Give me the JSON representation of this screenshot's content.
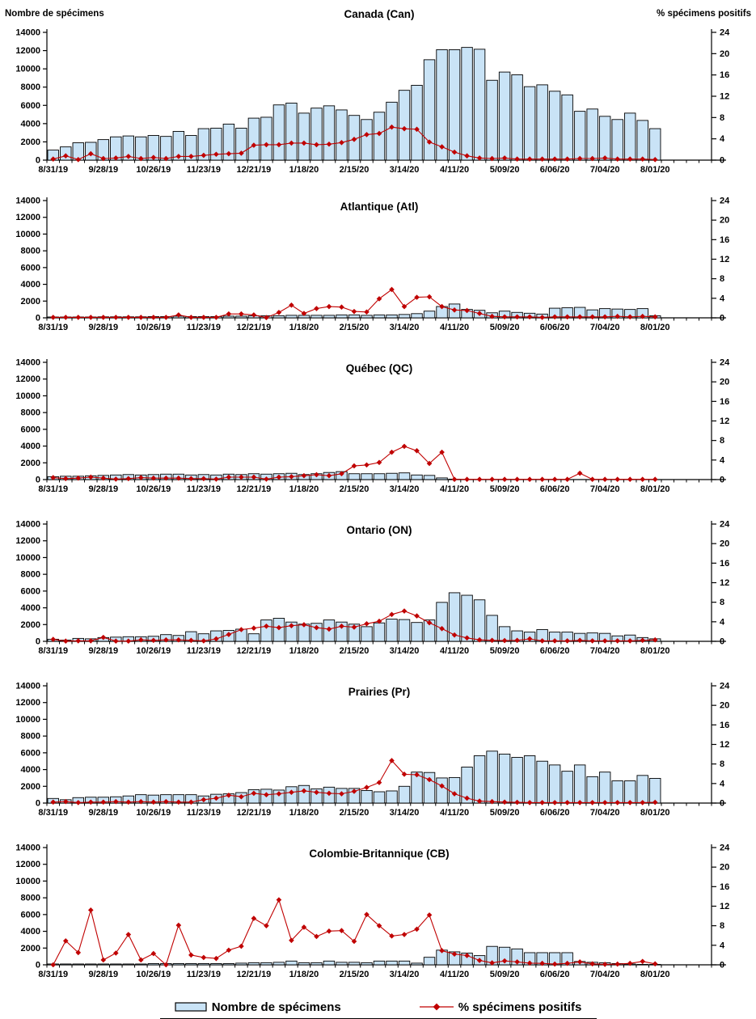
{
  "axes": {
    "left_title": "Nombre de spécimens",
    "right_title": "% spécimens positifs",
    "left_ticks": [
      0,
      2000,
      4000,
      6000,
      8000,
      10000,
      12000,
      14000
    ],
    "right_ticks": [
      0,
      4,
      8,
      12,
      16,
      20,
      24
    ],
    "left_max": 14000,
    "right_max": 24,
    "x_tick_labels": [
      "8/31/19",
      "9/28/19",
      "10/26/19",
      "11/23/19",
      "12/21/19",
      "1/18/20",
      "2/15/20",
      "3/14/20",
      "4/11/20",
      "5/09/20",
      "6/06/20",
      "7/04/20",
      "8/01/20"
    ],
    "weeks_total": 53,
    "weeks_data": 49,
    "label_every": 4
  },
  "legend": {
    "bar_label": "Nombre de spécimens",
    "line_label": "% spécimens positifs"
  },
  "colors": {
    "bar_fill": "#C9E3F6",
    "bar_stroke": "#000000",
    "line": "#C00000",
    "text": "#000000"
  },
  "chart_data": [
    {
      "type": "bar",
      "region_id": "canada",
      "title": "Canada (Can)",
      "bar_series": "Nombre de spécimens",
      "line_series": "% spécimens positifs",
      "specimens": [
        1100,
        1450,
        1900,
        1950,
        2250,
        2550,
        2650,
        2550,
        2700,
        2600,
        3150,
        2700,
        3450,
        3500,
        3950,
        3500,
        4600,
        4700,
        6050,
        6250,
        5150,
        5700,
        5950,
        5500,
        4900,
        4450,
        5250,
        6350,
        7650,
        8200,
        11000,
        12100,
        12100,
        12350,
        12150,
        8750,
        9650,
        9350,
        8050,
        8250,
        7550,
        7150,
        5350,
        5600,
        4800,
        4450,
        5150,
        4350,
        3450
      ],
      "pct_positifs": [
        0.2,
        0.8,
        0.1,
        1.2,
        0.3,
        0.4,
        0.7,
        0.3,
        0.5,
        0.3,
        0.7,
        0.7,
        0.9,
        1.1,
        1.2,
        1.3,
        2.8,
        2.9,
        2.9,
        3.2,
        3.2,
        2.9,
        3.0,
        3.3,
        3.9,
        4.8,
        5.0,
        6.2,
        5.9,
        5.8,
        3.4,
        2.5,
        1.5,
        0.8,
        0.4,
        0.3,
        0.4,
        0.2,
        0.2,
        0.2,
        0.2,
        0.2,
        0.3,
        0.3,
        0.4,
        0.2,
        0.2,
        0.2,
        0.1
      ]
    },
    {
      "type": "bar",
      "region_id": "atlantique",
      "title": "Atlantique (Atl)",
      "bar_series": "Nombre de spécimens",
      "line_series": "% spécimens positifs",
      "specimens": [
        100,
        100,
        100,
        100,
        120,
        120,
        120,
        120,
        150,
        150,
        200,
        150,
        150,
        150,
        200,
        200,
        250,
        250,
        250,
        300,
        300,
        300,
        300,
        350,
        350,
        300,
        350,
        350,
        400,
        500,
        800,
        1350,
        1650,
        1000,
        900,
        600,
        800,
        650,
        550,
        450,
        1150,
        1200,
        1250,
        950,
        1100,
        1050,
        1000,
        1100,
        250
      ],
      "pct_positifs": [
        0.1,
        0.1,
        0.1,
        0.1,
        0.1,
        0.1,
        0.1,
        0.1,
        0.1,
        0.1,
        0.6,
        0.1,
        0.1,
        0.1,
        0.8,
        0.8,
        0.6,
        0.05,
        1.1,
        2.6,
        0.9,
        1.9,
        2.3,
        2.2,
        1.3,
        1.2,
        3.9,
        5.8,
        2.3,
        4.2,
        4.3,
        2.3,
        1.6,
        1.5,
        0.9,
        0.3,
        0.2,
        0.2,
        0.2,
        0.1,
        0.2,
        0.2,
        0.2,
        0.2,
        0.2,
        0.3,
        0.2,
        0.3,
        0.2
      ]
    },
    {
      "type": "bar",
      "region_id": "quebec",
      "title": "Québec (QC)",
      "bar_series": "Nombre de spécimens",
      "line_series": "% spécimens positifs",
      "specimens": [
        350,
        400,
        400,
        450,
        500,
        550,
        600,
        550,
        600,
        650,
        650,
        550,
        600,
        550,
        650,
        600,
        700,
        650,
        700,
        750,
        600,
        700,
        850,
        950,
        700,
        700,
        700,
        750,
        800,
        550,
        500,
        200,
        50,
        0,
        0,
        0,
        0,
        0,
        0,
        0,
        0,
        0,
        0,
        0,
        0,
        0,
        0,
        0,
        0
      ],
      "pct_positifs": [
        0.4,
        0.2,
        0.3,
        0.5,
        0.3,
        0.1,
        0.2,
        0.4,
        0.3,
        0.3,
        0.3,
        0.2,
        0.2,
        0.1,
        0.5,
        0.5,
        0.5,
        0.1,
        0.5,
        0.6,
        0.8,
        1.0,
        0.8,
        1.2,
        2.8,
        3.0,
        3.5,
        5.6,
        6.8,
        5.9,
        3.3,
        5.6,
        0.05,
        0.05,
        0.05,
        0.05,
        0.05,
        0.05,
        0.05,
        0.05,
        0.05,
        0.05,
        1.3,
        0.05,
        0.05,
        0.05,
        0.05,
        0.05,
        0.05
      ]
    },
    {
      "type": "bar",
      "region_id": "ontario",
      "title": "Ontario (ON)",
      "bar_series": "Nombre de spécimens",
      "line_series": "% spécimens positifs",
      "specimens": [
        250,
        150,
        350,
        300,
        450,
        500,
        550,
        550,
        600,
        800,
        700,
        1150,
        900,
        1250,
        1300,
        1450,
        900,
        2550,
        2750,
        2300,
        2050,
        2150,
        2550,
        2300,
        2050,
        1750,
        2200,
        2650,
        2600,
        2250,
        2550,
        4650,
        5800,
        5500,
        4950,
        3100,
        1750,
        1250,
        1100,
        1400,
        1100,
        1100,
        950,
        1000,
        950,
        650,
        750,
        450,
        300
      ],
      "pct_positifs": [
        0.4,
        0.05,
        0.1,
        0.1,
        0.8,
        0.05,
        0.05,
        0.3,
        0.2,
        0.3,
        0.3,
        0.2,
        0.1,
        0.5,
        1.4,
        2.4,
        2.7,
        3.1,
        2.8,
        3.2,
        3.4,
        2.8,
        2.5,
        3.1,
        2.9,
        3.6,
        4.1,
        5.5,
        6.2,
        5.2,
        3.8,
        2.6,
        1.3,
        0.7,
        0.3,
        0.2,
        0.15,
        0.2,
        0.5,
        0.1,
        0.1,
        0.1,
        0.2,
        0.1,
        0.1,
        0.1,
        0.1,
        0.2,
        0.3
      ]
    },
    {
      "type": "bar",
      "region_id": "prairies",
      "title": "Prairies (Pr)",
      "bar_series": "Nombre de spécimens",
      "line_series": "% spécimens positifs",
      "specimens": [
        550,
        400,
        650,
        700,
        700,
        750,
        850,
        1000,
        950,
        1000,
        1000,
        1000,
        850,
        1050,
        1100,
        1250,
        1600,
        1650,
        1550,
        1950,
        2100,
        1700,
        1900,
        1750,
        1750,
        1500,
        1350,
        1450,
        2000,
        3700,
        3650,
        3000,
        3050,
        4300,
        5650,
        6200,
        5850,
        5450,
        5650,
        5000,
        4550,
        3800,
        4550,
        3150,
        3700,
        2650,
        2650,
        3300,
        2950
      ],
      "pct_positifs": [
        0.2,
        0.3,
        0.1,
        0.2,
        0.2,
        0.3,
        0.2,
        0.3,
        0.2,
        0.3,
        0.2,
        0.2,
        0.7,
        1.0,
        1.6,
        1.3,
        2.0,
        1.7,
        1.9,
        2.2,
        2.5,
        2.2,
        2.0,
        1.9,
        2.4,
        3.2,
        4.2,
        8.7,
        5.9,
        5.8,
        4.8,
        3.5,
        1.9,
        1.0,
        0.4,
        0.3,
        0.2,
        0.15,
        0.1,
        0.1,
        0.1,
        0.1,
        0.1,
        0.1,
        0.1,
        0.1,
        0.1,
        0.1,
        0.15
      ]
    },
    {
      "type": "bar",
      "region_id": "colombie-britannique",
      "title": "Colombie-Britannique (CB)",
      "bar_series": "Nombre de spécimens",
      "line_series": "% spécimens positifs",
      "specimens": [
        100,
        100,
        100,
        100,
        100,
        100,
        100,
        100,
        150,
        150,
        150,
        150,
        150,
        150,
        150,
        200,
        250,
        250,
        300,
        450,
        250,
        250,
        450,
        300,
        300,
        250,
        450,
        450,
        450,
        200,
        900,
        1750,
        1550,
        1400,
        1100,
        2200,
        2100,
        1900,
        1450,
        1450,
        1450,
        1450,
        400,
        300,
        250,
        150,
        100,
        50,
        50
      ],
      "pct_positifs": [
        0,
        4.9,
        2.5,
        11.2,
        1.0,
        2.4,
        6.2,
        1.0,
        2.3,
        0,
        8.1,
        2.0,
        1.5,
        1.3,
        3.0,
        3.8,
        9.5,
        8.0,
        13.3,
        5.0,
        7.7,
        5.8,
        6.9,
        7.0,
        4.8,
        10.3,
        8.0,
        5.9,
        6.2,
        7.3,
        10.2,
        2.9,
        2.2,
        1.9,
        0.9,
        0.4,
        0.8,
        0.6,
        0.35,
        0.3,
        0.15,
        0.3,
        0.6,
        0.2,
        0.1,
        0.15,
        0.3,
        0.7,
        0.2
      ]
    }
  ]
}
